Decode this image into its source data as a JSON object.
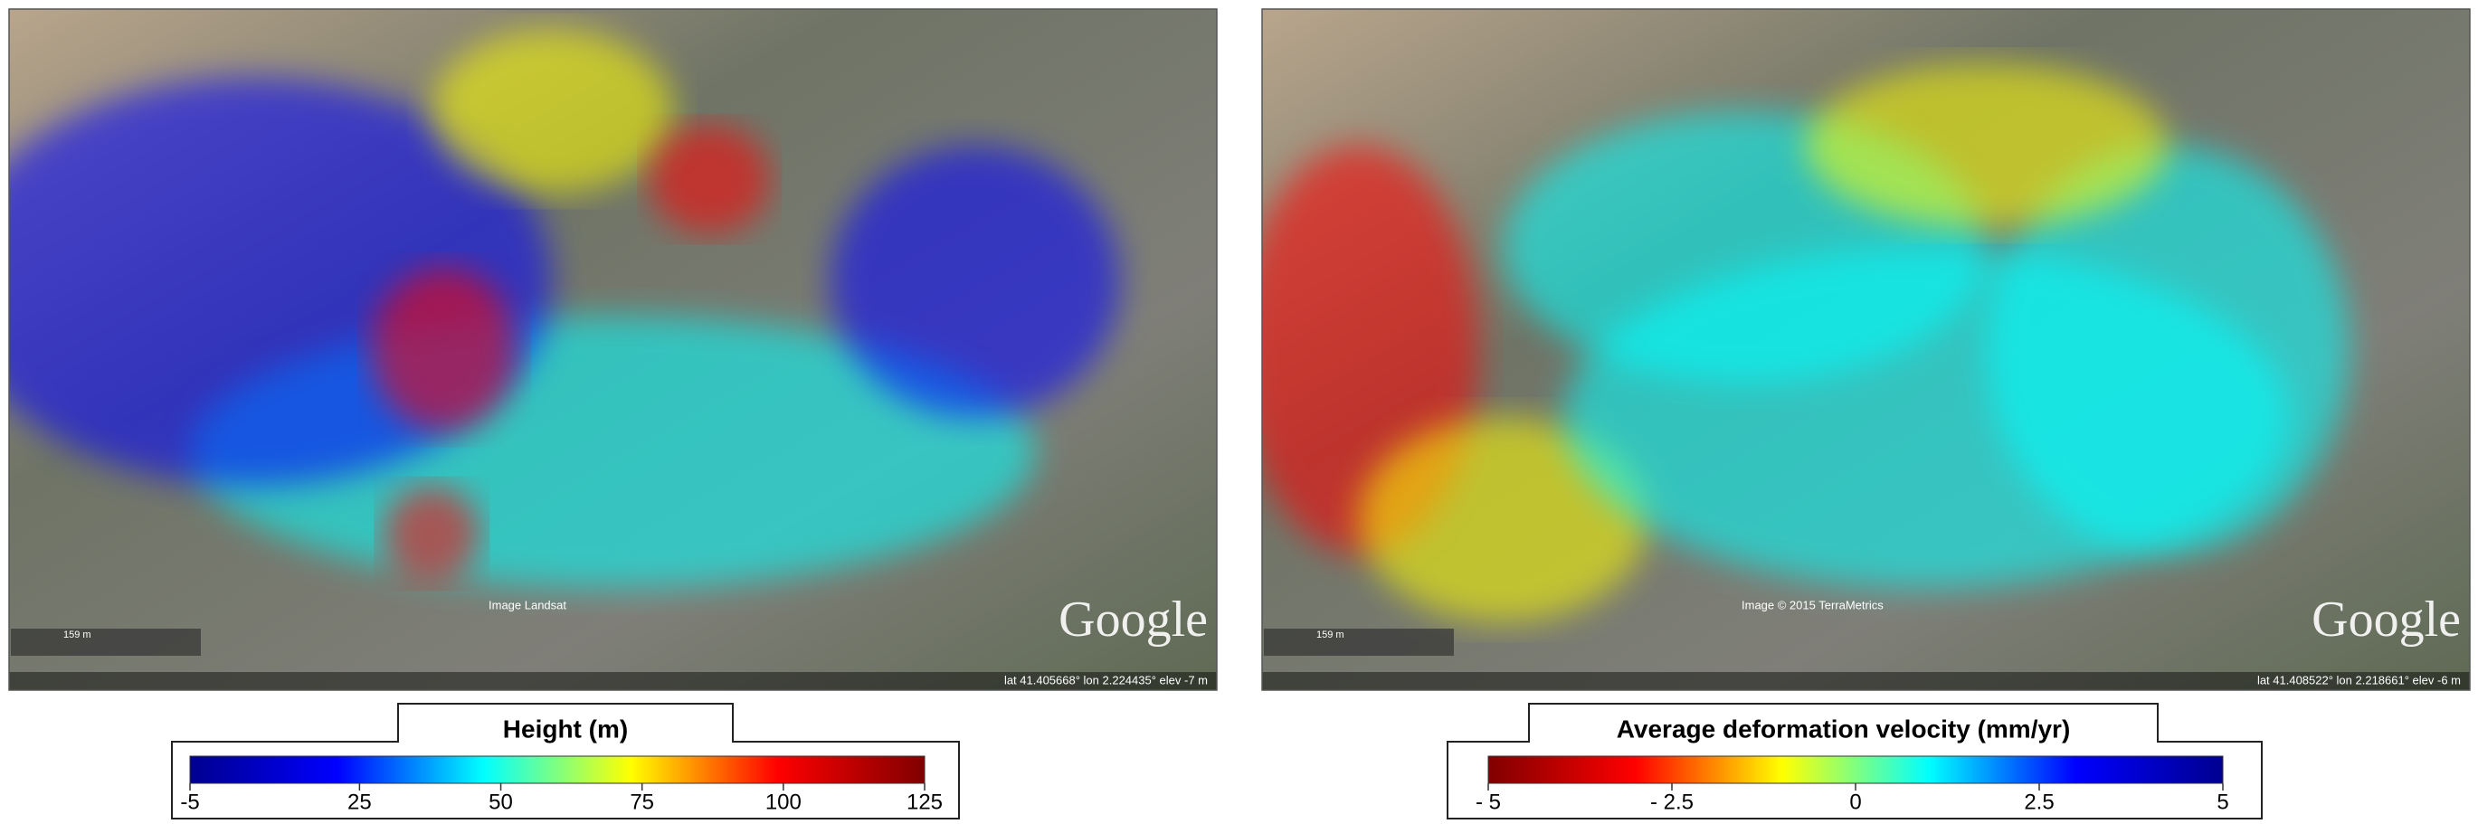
{
  "panels": [
    {
      "map": {
        "scale_label": "159 m",
        "attribution": "Image Landsat",
        "coords": "lat 41.405668° lon 2.224435° elev -7 m",
        "logo": "Google"
      },
      "colorbar": {
        "title": "Height (m)",
        "lim": [
          -5,
          125
        ],
        "ticks": [
          -5,
          25,
          50,
          75,
          100,
          125
        ],
        "colors": [
          "#00008f",
          "#0000ff",
          "#00ffff",
          "#ffff00",
          "#ff0000",
          "#800000"
        ]
      }
    },
    {
      "map": {
        "scale_label": "159 m",
        "attribution": "Image © 2015 TerraMetrics",
        "coords": "lat 41.408522° lon 2.218661° elev -6 m",
        "logo": "Google"
      },
      "colorbar": {
        "title": "Average deformation velocity (mm/yr)",
        "lim": [
          -5,
          5
        ],
        "ticks": [
          {
            "value": -5,
            "label": "- 5"
          },
          {
            "value": -2.5,
            "label": "- 2.5"
          },
          0,
          2.5,
          5
        ],
        "colors": [
          "#800000",
          "#ff0000",
          "#ffff00",
          "#00ffff",
          "#0000ff",
          "#00008f"
        ]
      }
    }
  ]
}
